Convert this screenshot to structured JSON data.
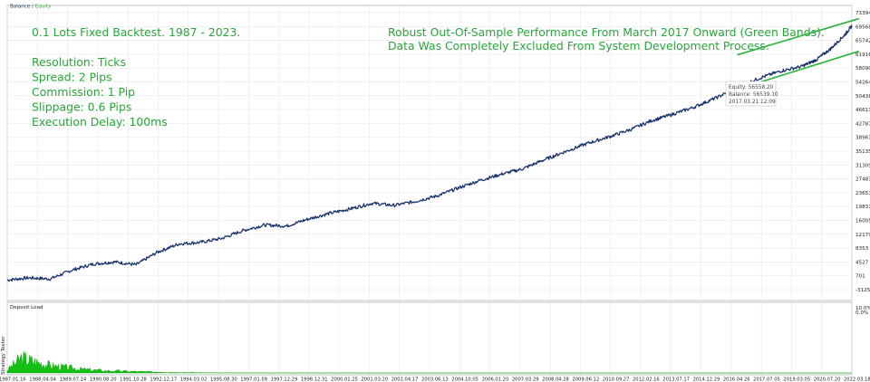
{
  "legend": {
    "balance": "Balance",
    "separator": " / ",
    "equity": "Equity"
  },
  "annotations": {
    "left": [
      "0.1 Lots Fixed Backtest. 1987 - 2023.",
      "",
      "Resolution: Ticks",
      "Spread: 2 Pips",
      "Commission: 1 Pip",
      "Slippage: 0.6 Pips",
      "Execution Delay: 100ms"
    ],
    "right": [
      "Robust Out-Of-Sample Performance From March 2017 Onward (Green Bands).",
      "Data Was Completely Excluded From System Development Process."
    ]
  },
  "tooltip": {
    "equity": "Equity: 56558.20",
    "balance": "Balance: 56539.10",
    "date": "2017.03.21 12:09"
  },
  "side_label": "Strategy Tester",
  "colors": {
    "balance_line": "#15306a",
    "band": "#2bb33a",
    "deposit_load": "#13c013",
    "annotation": "#2aa53a",
    "grid": "#e3e3e3"
  },
  "chart_data": [
    {
      "type": "line",
      "series": [
        {
          "name": "Balance"
        },
        {
          "name": "Equity"
        }
      ],
      "y_ticks": [
        "73394",
        "69568",
        "65742",
        "61916",
        "58090",
        "54264",
        "50438",
        "46613",
        "42787",
        "38961",
        "35135",
        "31309",
        "27483",
        "23657",
        "19831",
        "16005",
        "12179",
        "8353",
        "4527",
        "701",
        "-3125"
      ],
      "ylim": [
        -3125,
        73394
      ],
      "x_ticks": [
        "1987.01.16",
        "1988.04.04",
        "1989.07.24",
        "1990.08.20",
        "1991.10.28",
        "1992.12.17",
        "1994.03.02",
        "1995.08.30",
        "1997.01.09",
        "1997.12.29",
        "1998.12.31",
        "2000.01.25",
        "2001.03.20",
        "2002.04.17",
        "2003.06.13",
        "2004.10.05",
        "2006.01.20",
        "2007.03.29",
        "2008.04.28",
        "2009.06.12",
        "2010.09.27",
        "2012.02.16",
        "2013.07.17",
        "2014.12.29",
        "2016.04.26",
        "2017.07.05",
        "2019.03.05",
        "2020.07.20",
        "2022.03.18"
      ],
      "x_index": [
        0,
        3,
        6,
        9,
        12,
        15,
        18,
        21,
        24,
        27,
        30,
        33,
        36,
        39,
        42,
        45,
        48,
        51,
        54,
        57,
        60,
        63,
        66,
        69,
        72,
        75,
        78,
        81,
        84,
        87,
        90,
        93,
        96,
        99,
        102,
        105,
        108
      ],
      "values": [
        -1200,
        -600,
        -900,
        1500,
        3200,
        3800,
        3000,
        6500,
        8800,
        9200,
        10300,
        12500,
        14000,
        13700,
        15600,
        17200,
        18500,
        20000,
        19400,
        20500,
        22000,
        24200,
        26300,
        28000,
        29500,
        32000,
        34300,
        36500,
        38300,
        40300,
        42800,
        44600,
        46600,
        49100,
        51900,
        54500,
        56500
      ],
      "bands": [
        {
          "x_index": [
            102,
            119
          ],
          "values": [
            61000,
            71000
          ]
        },
        {
          "x_index": [
            102,
            119
          ],
          "values": [
            51500,
            62000
          ]
        }
      ],
      "tail": {
        "x_index": [
          105,
          108,
          111,
          113,
          115,
          117,
          118
        ],
        "values": [
          54500,
          56500,
          57800,
          59600,
          62600,
          66500,
          69000
        ]
      }
    },
    {
      "type": "area",
      "title": "Deposit Load",
      "y_ticks": [
        "10.0%",
        "0.0%"
      ],
      "ylim": [
        0,
        10
      ],
      "x_index": [
        0,
        2,
        4,
        6,
        8,
        10,
        12,
        15,
        18,
        21,
        24,
        27,
        30,
        40,
        60,
        90,
        118
      ],
      "values": [
        0.5,
        2.6,
        1.9,
        1.3,
        1.0,
        0.7,
        0.5,
        0.35,
        0.25,
        0.15,
        0.1,
        0.05,
        0.02,
        0.01,
        0,
        0,
        0
      ]
    }
  ]
}
